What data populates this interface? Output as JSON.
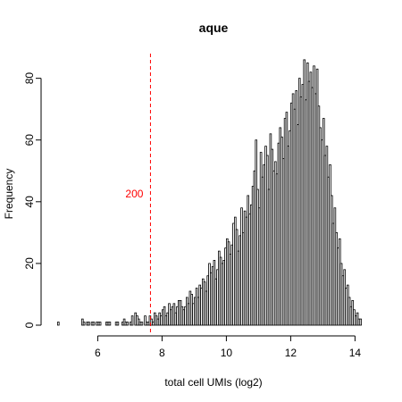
{
  "chart_data": {
    "type": "bar",
    "title": "aque",
    "xlabel": "total cell UMIs (log2)",
    "ylabel": "Frequency",
    "xlim": [
      4.6,
      14.6
    ],
    "ylim": [
      0,
      88
    ],
    "x_ticks": [
      6,
      8,
      10,
      12,
      14
    ],
    "y_ticks": [
      0,
      20,
      40,
      60,
      80
    ],
    "bin_width": 0.05,
    "bin_start": 4.75,
    "frequencies": [
      1,
      0,
      0,
      0,
      0,
      0,
      0,
      0,
      0,
      0,
      0,
      0,
      0,
      0,
      0,
      2,
      1,
      0,
      1,
      1,
      0,
      1,
      1,
      0,
      1,
      1,
      1,
      0,
      0,
      0,
      1,
      1,
      1,
      0,
      0,
      0,
      1,
      1,
      0,
      0,
      1,
      2,
      1,
      1,
      0,
      1,
      3,
      0,
      4,
      3,
      2,
      1,
      1,
      0,
      3,
      1,
      1,
      3,
      2,
      1,
      4,
      3,
      2,
      4,
      3,
      5,
      6,
      3,
      4,
      7,
      5,
      6,
      7,
      4,
      6,
      8,
      8,
      6,
      5,
      6,
      9,
      7,
      11,
      10,
      7,
      9,
      12,
      9,
      13,
      12,
      15,
      14,
      11,
      16,
      20,
      17,
      19,
      21,
      15,
      18,
      24,
      22,
      20,
      21,
      25,
      28,
      27,
      23,
      26,
      33,
      35,
      31,
      24,
      29,
      38,
      30,
      37,
      35,
      42,
      36,
      39,
      45,
      50,
      60,
      44,
      38,
      56,
      48,
      52,
      58,
      55,
      44,
      62,
      57,
      50,
      53,
      49,
      59,
      64,
      61,
      54,
      67,
      69,
      58,
      63,
      72,
      75,
      70,
      76,
      65,
      80,
      74,
      78,
      86,
      73,
      85,
      79,
      82,
      77,
      84,
      75,
      83,
      71,
      64,
      60,
      67,
      55,
      58,
      48,
      52,
      42,
      33,
      38,
      30,
      25,
      28,
      20,
      16,
      18,
      12,
      13,
      9,
      6,
      8,
      5,
      3,
      4,
      2,
      2
    ],
    "threshold": {
      "x": 7.64,
      "label": "200",
      "color": "#ff0000"
    }
  }
}
